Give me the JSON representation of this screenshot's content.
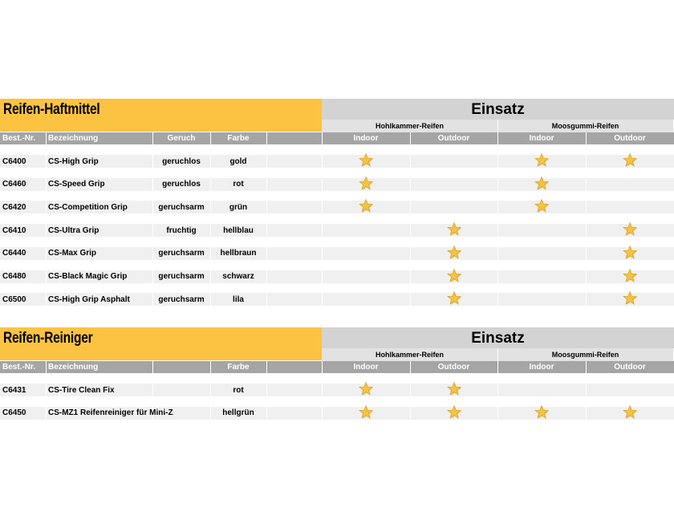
{
  "tables": [
    {
      "title": "Reifen-Haftmittel",
      "einsatz": "Einsatz",
      "groups": [
        "Hohlkammer-Reifen",
        "Moosgummi-Reifen"
      ],
      "columns": {
        "nr": "Best.-Nr.",
        "name": "Bezeichnung",
        "geruch": "Geruch",
        "farbe": "Farbe"
      },
      "usage": [
        "Indoor",
        "Outdoor",
        "Indoor",
        "Outdoor"
      ],
      "rows": [
        {
          "nr": "C6400",
          "name": "CS-High Grip",
          "geruch": "geruchlos",
          "farbe": "gold",
          "stars": [
            true,
            false,
            true,
            true
          ]
        },
        {
          "nr": "C6460",
          "name": "CS-Speed Grip",
          "geruch": "geruchlos",
          "farbe": "rot",
          "stars": [
            true,
            false,
            true,
            false
          ]
        },
        {
          "nr": "C6420",
          "name": "CS-Competition Grip",
          "geruch": "geruchsarm",
          "farbe": "grün",
          "stars": [
            true,
            false,
            true,
            false
          ]
        },
        {
          "nr": "C6410",
          "name": "CS-Ultra Grip",
          "geruch": "fruchtig",
          "farbe": "hellblau",
          "stars": [
            false,
            true,
            false,
            true
          ]
        },
        {
          "nr": "C6440",
          "name": "CS-Max Grip",
          "geruch": "geruchsarm",
          "farbe": "hellbraun",
          "stars": [
            false,
            true,
            false,
            true
          ]
        },
        {
          "nr": "C6480",
          "name": "CS-Black Magic Grip",
          "geruch": "geruchsarm",
          "farbe": "schwarz",
          "stars": [
            false,
            true,
            false,
            true
          ]
        },
        {
          "nr": "C6500",
          "name": "CS-High Grip Asphalt",
          "geruch": "geruchsarm",
          "farbe": "lila",
          "stars": [
            false,
            true,
            false,
            true
          ]
        }
      ]
    },
    {
      "title": "Reifen-Reiniger",
      "einsatz": "Einsatz",
      "groups": [
        "Hohlkammer-Reifen",
        "Moosgummi-Reifen"
      ],
      "columns": {
        "nr": "Best.-Nr.",
        "name": "Bezeichnung",
        "farbe": "Farbe"
      },
      "usage": [
        "Indoor",
        "Outdoor",
        "Indoor",
        "Outdoor"
      ],
      "rows": [
        {
          "nr": "C6431",
          "name": "CS-Tire Clean Fix",
          "farbe": "rot",
          "stars": [
            true,
            true,
            false,
            false
          ]
        },
        {
          "nr": "C6450",
          "name": "CS-MZ1 Reifenreiniger für Mini-Z",
          "farbe": "hellgrün",
          "stars": [
            true,
            true,
            true,
            true
          ]
        }
      ]
    }
  ]
}
